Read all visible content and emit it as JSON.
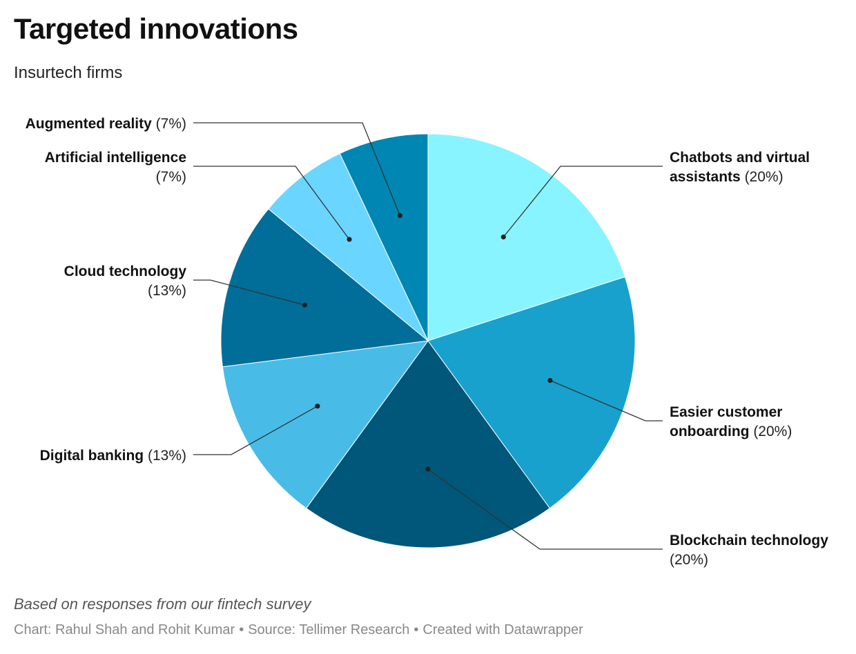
{
  "header": {
    "title": "Targeted innovations",
    "subtitle": "Insurtech firms"
  },
  "footer": {
    "notes": "Based on responses from our fintech survey",
    "chart_credit": "Chart: Rahul Shah and Rohit Kumar",
    "source": "Source: Tellimer Research",
    "created_with": "Created with Datawrapper",
    "separator": "•"
  },
  "chart_data": {
    "type": "pie",
    "title": "Targeted innovations",
    "subtitle": "Insurtech firms",
    "slices": [
      {
        "label": "Chatbots and virtual assistants",
        "label_lines": [
          "Chatbots and virtual",
          "assistants"
        ],
        "value": 20,
        "display": "(20%)",
        "color": "#88f4ff"
      },
      {
        "label": "Easier customer onboarding",
        "label_lines": [
          "Easier customer",
          "onboarding"
        ],
        "value": 20,
        "display": "(20%)",
        "color": "#18a1cd"
      },
      {
        "label": "Blockchain technology",
        "label_lines": [
          "Blockchain technology"
        ],
        "value": 20,
        "display": "(20%)",
        "color": "#00577a"
      },
      {
        "label": "Digital banking",
        "label_lines": [
          "Digital banking"
        ],
        "value": 13,
        "display": "(13%)",
        "color": "#48bce7"
      },
      {
        "label": "Cloud technology",
        "label_lines": [
          "Cloud technology"
        ],
        "value": 13,
        "display": "(13%)",
        "color": "#006e98"
      },
      {
        "label": "Artificial intelligence",
        "label_lines": [
          "Artificial intelligence"
        ],
        "value": 7,
        "display": "(7%)",
        "color": "#6ad6ff"
      },
      {
        "label": "Augmented reality",
        "label_lines": [
          "Augmented reality"
        ],
        "value": 7,
        "display": "(7%)",
        "color": "#0086b3"
      }
    ],
    "start_angle": "12 o'clock",
    "direction": "clockwise",
    "legend": "none",
    "label_style": "outside with leader lines"
  }
}
